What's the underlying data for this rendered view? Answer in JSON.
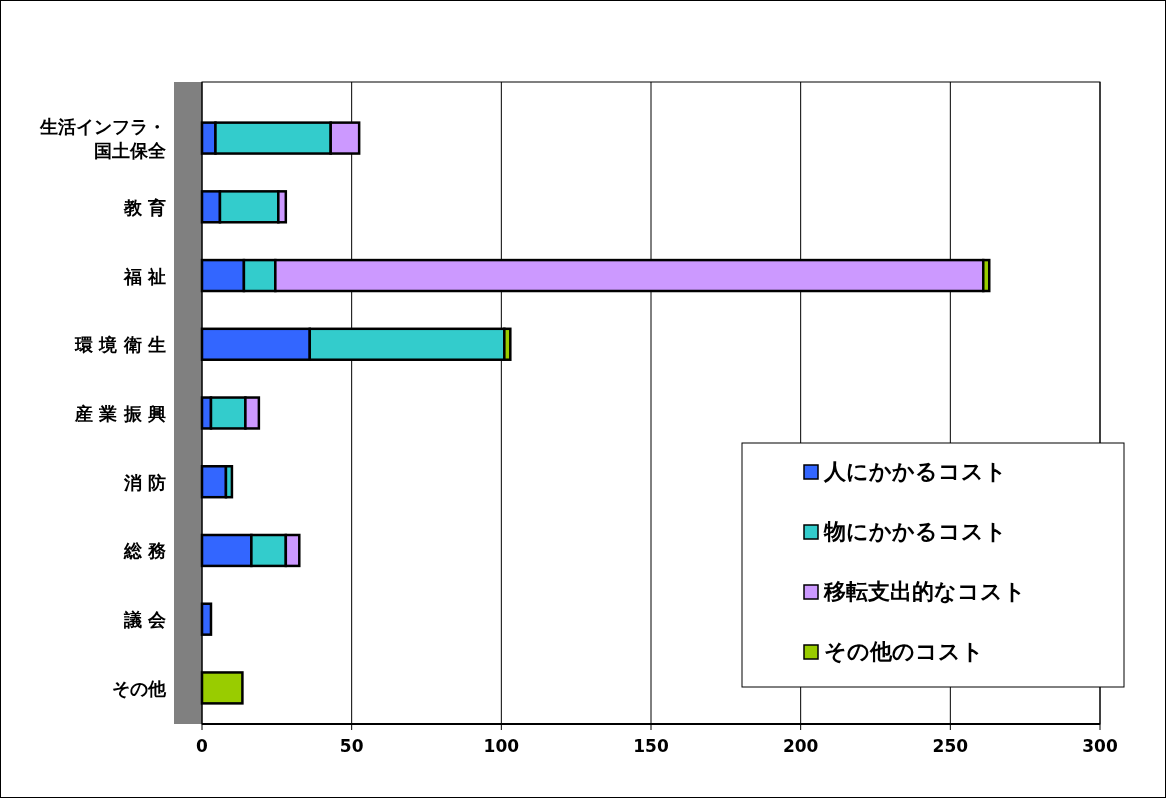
{
  "chart_data": {
    "type": "bar",
    "orientation": "horizontal",
    "stacked": true,
    "categories": [
      "生活インフラ・国土保全",
      "教 育",
      "福 祉",
      "環 境 衛 生",
      "産 業 振 興",
      "消 防",
      "総 務",
      "議 会",
      "その他"
    ],
    "series": [
      {
        "name": "人にかかるコスト",
        "color": "#3366ff",
        "values": [
          4.5,
          6,
          14,
          36,
          3,
          8,
          16.5,
          3,
          null
        ]
      },
      {
        "name": "物にかかるコスト",
        "color": "#33cccc",
        "values": [
          38.5,
          19.5,
          10.5,
          65,
          11.5,
          2,
          11.5,
          null,
          null
        ]
      },
      {
        "name": "移転支出的なコスト",
        "color": "#cc99ff",
        "values": [
          9.5,
          2.5,
          236.5,
          null,
          4.5,
          null,
          4.5,
          null,
          null
        ]
      },
      {
        "name": "その他のコスト",
        "color": "#99cc00",
        "values": [
          null,
          null,
          2,
          2,
          null,
          null,
          null,
          null,
          13.5
        ]
      }
    ],
    "xlim": [
      0,
      300
    ],
    "xticks": [
      0,
      50,
      100,
      150,
      200,
      250,
      300
    ],
    "grid": "x",
    "legend": "bottom right"
  }
}
